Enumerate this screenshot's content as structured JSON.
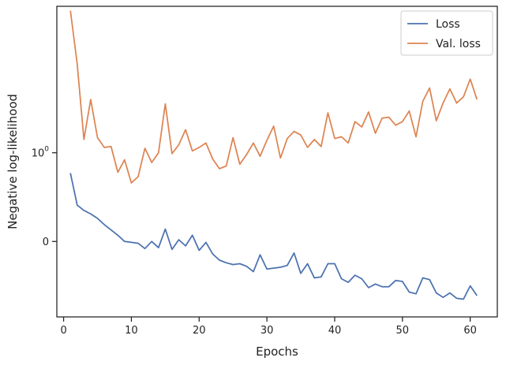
{
  "chart_data": {
    "type": "line",
    "xlabel": "Epochs",
    "ylabel": "Negative log-likelihood",
    "xlim": [
      -1,
      64
    ],
    "ylim": [
      -0.85,
      2.65
    ],
    "yscale": "symlog",
    "x_ticks": [
      0,
      10,
      20,
      30,
      40,
      50,
      60
    ],
    "x_tick_labels": [
      "0",
      "10",
      "20",
      "30",
      "40",
      "50",
      "60"
    ],
    "y_ticks": [
      0,
      1
    ],
    "y_tick_labels": {
      "zero": "0",
      "one_base": "10",
      "one_exponent": "0"
    },
    "legend_position": "top-right",
    "grid": false,
    "series": [
      {
        "name": "Loss",
        "color": "#4c72b0",
        "x": [
          1,
          2,
          3,
          4,
          5,
          6,
          7,
          8,
          9,
          10,
          11,
          12,
          13,
          14,
          15,
          16,
          17,
          18,
          19,
          20,
          21,
          22,
          23,
          24,
          25,
          26,
          27,
          28,
          29,
          30,
          31,
          32,
          33,
          34,
          35,
          36,
          37,
          38,
          39,
          40,
          41,
          42,
          43,
          44,
          45,
          46,
          47,
          48,
          49,
          50,
          51,
          52,
          53,
          54,
          55,
          56,
          57,
          58,
          59,
          60,
          61
        ],
        "values": [
          0.77,
          0.41,
          0.35,
          0.31,
          0.26,
          0.19,
          0.13,
          0.07,
          0.0,
          -0.01,
          -0.02,
          -0.08,
          0.0,
          -0.07,
          0.14,
          -0.09,
          0.02,
          -0.05,
          0.07,
          -0.1,
          -0.01,
          -0.14,
          -0.21,
          -0.24,
          -0.26,
          -0.25,
          -0.28,
          -0.34,
          -0.15,
          -0.31,
          -0.3,
          -0.29,
          -0.27,
          -0.13,
          -0.36,
          -0.25,
          -0.41,
          -0.4,
          -0.25,
          -0.25,
          -0.42,
          -0.46,
          -0.38,
          -0.42,
          -0.52,
          -0.48,
          -0.51,
          -0.51,
          -0.44,
          -0.45,
          -0.57,
          -0.59,
          -0.41,
          -0.43,
          -0.58,
          -0.63,
          -0.58,
          -0.64,
          -0.65,
          -0.5,
          -0.61
        ]
      },
      {
        "name": "Val. loss",
        "color": "#dd8452",
        "x": [
          1,
          2,
          3,
          4,
          5,
          6,
          7,
          8,
          9,
          10,
          11,
          12,
          13,
          14,
          15,
          16,
          17,
          18,
          19,
          20,
          21,
          22,
          23,
          24,
          25,
          26,
          27,
          28,
          29,
          30,
          31,
          32,
          33,
          34,
          35,
          36,
          37,
          38,
          39,
          40,
          41,
          42,
          43,
          44,
          45,
          46,
          47,
          48,
          49,
          50,
          51,
          52,
          53,
          54,
          55,
          56,
          57,
          58,
          59,
          60,
          61
        ],
        "values": [
          2.6,
          2.0,
          1.15,
          1.6,
          1.17,
          1.06,
          1.07,
          0.78,
          0.92,
          0.66,
          0.73,
          1.05,
          0.89,
          1.0,
          1.55,
          0.99,
          1.09,
          1.26,
          1.02,
          1.06,
          1.11,
          0.93,
          0.82,
          0.85,
          1.17,
          0.87,
          0.98,
          1.11,
          0.96,
          1.14,
          1.3,
          0.94,
          1.16,
          1.24,
          1.2,
          1.06,
          1.15,
          1.07,
          1.45,
          1.16,
          1.18,
          1.11,
          1.35,
          1.29,
          1.46,
          1.22,
          1.39,
          1.4,
          1.31,
          1.35,
          1.47,
          1.18,
          1.58,
          1.73,
          1.36,
          1.56,
          1.72,
          1.56,
          1.63,
          1.83,
          1.6
        ]
      }
    ]
  }
}
